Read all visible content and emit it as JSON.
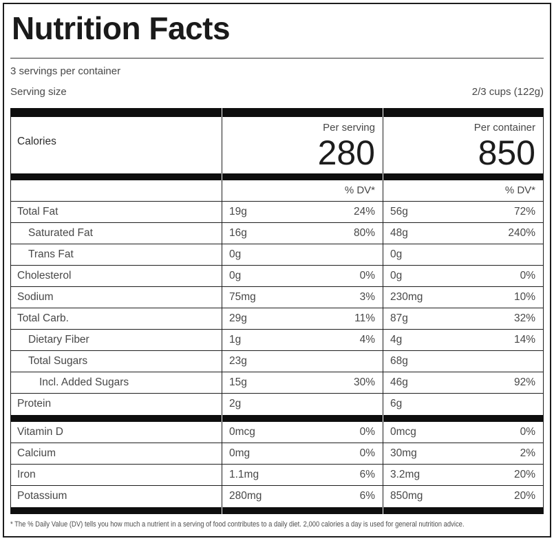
{
  "label": {
    "title": "Nutrition Facts",
    "servings_per_container": "3 servings per container",
    "serving_size_label": "Serving size",
    "serving_size_value": "2/3 cups (122g)",
    "calories": {
      "label": "Calories",
      "per_serving_label": "Per serving",
      "per_serving_value": "280",
      "per_container_label": "Per container",
      "per_container_value": "850"
    },
    "dv_header": "% DV*",
    "nutrients": [
      {
        "name": "Total Fat",
        "indent": 0,
        "serving_amount": "19g",
        "serving_dv": "24%",
        "container_amount": "56g",
        "container_dv": "72%"
      },
      {
        "name": "Saturated Fat",
        "indent": 1,
        "serving_amount": "16g",
        "serving_dv": "80%",
        "container_amount": "48g",
        "container_dv": "240%"
      },
      {
        "name": "Trans Fat",
        "indent": 1,
        "serving_amount": "0g",
        "serving_dv": "",
        "container_amount": "0g",
        "container_dv": ""
      },
      {
        "name": "Cholesterol",
        "indent": 0,
        "serving_amount": "0g",
        "serving_dv": "0%",
        "container_amount": "0g",
        "container_dv": "0%"
      },
      {
        "name": "Sodium",
        "indent": 0,
        "serving_amount": "75mg",
        "serving_dv": "3%",
        "container_amount": "230mg",
        "container_dv": "10%"
      },
      {
        "name": "Total Carb.",
        "indent": 0,
        "serving_amount": "29g",
        "serving_dv": "11%",
        "container_amount": "87g",
        "container_dv": "32%"
      },
      {
        "name": "Dietary Fiber",
        "indent": 1,
        "serving_amount": "1g",
        "serving_dv": "4%",
        "container_amount": "4g",
        "container_dv": "14%"
      },
      {
        "name": "Total Sugars",
        "indent": 1,
        "serving_amount": "23g",
        "serving_dv": "",
        "container_amount": "68g",
        "container_dv": ""
      },
      {
        "name": "Incl. Added Sugars",
        "indent": 2,
        "serving_amount": "15g",
        "serving_dv": "30%",
        "container_amount": "46g",
        "container_dv": "92%"
      },
      {
        "name": "Protein",
        "indent": 0,
        "serving_amount": "2g",
        "serving_dv": "",
        "container_amount": "6g",
        "container_dv": ""
      }
    ],
    "micronutrients": [
      {
        "name": "Vitamin D",
        "indent": 0,
        "serving_amount": "0mcg",
        "serving_dv": "0%",
        "container_amount": "0mcg",
        "container_dv": "0%"
      },
      {
        "name": "Calcium",
        "indent": 0,
        "serving_amount": "0mg",
        "serving_dv": "0%",
        "container_amount": "30mg",
        "container_dv": "2%"
      },
      {
        "name": "Iron",
        "indent": 0,
        "serving_amount": "1.1mg",
        "serving_dv": "6%",
        "container_amount": "3.2mg",
        "container_dv": "20%"
      },
      {
        "name": "Potassium",
        "indent": 0,
        "serving_amount": "280mg",
        "serving_dv": "6%",
        "container_amount": "850mg",
        "container_dv": "20%"
      }
    ],
    "footnote": "* The % Daily Value (DV) tells you how much a nutrient in a serving of food contributes to a daily diet. 2,000 calories a day is used for general nutrition advice.",
    "colors": {
      "heading": "#1a1a1a",
      "text": "#474747",
      "border": "#1c1c1c",
      "bar": "#0e0e0e"
    }
  }
}
